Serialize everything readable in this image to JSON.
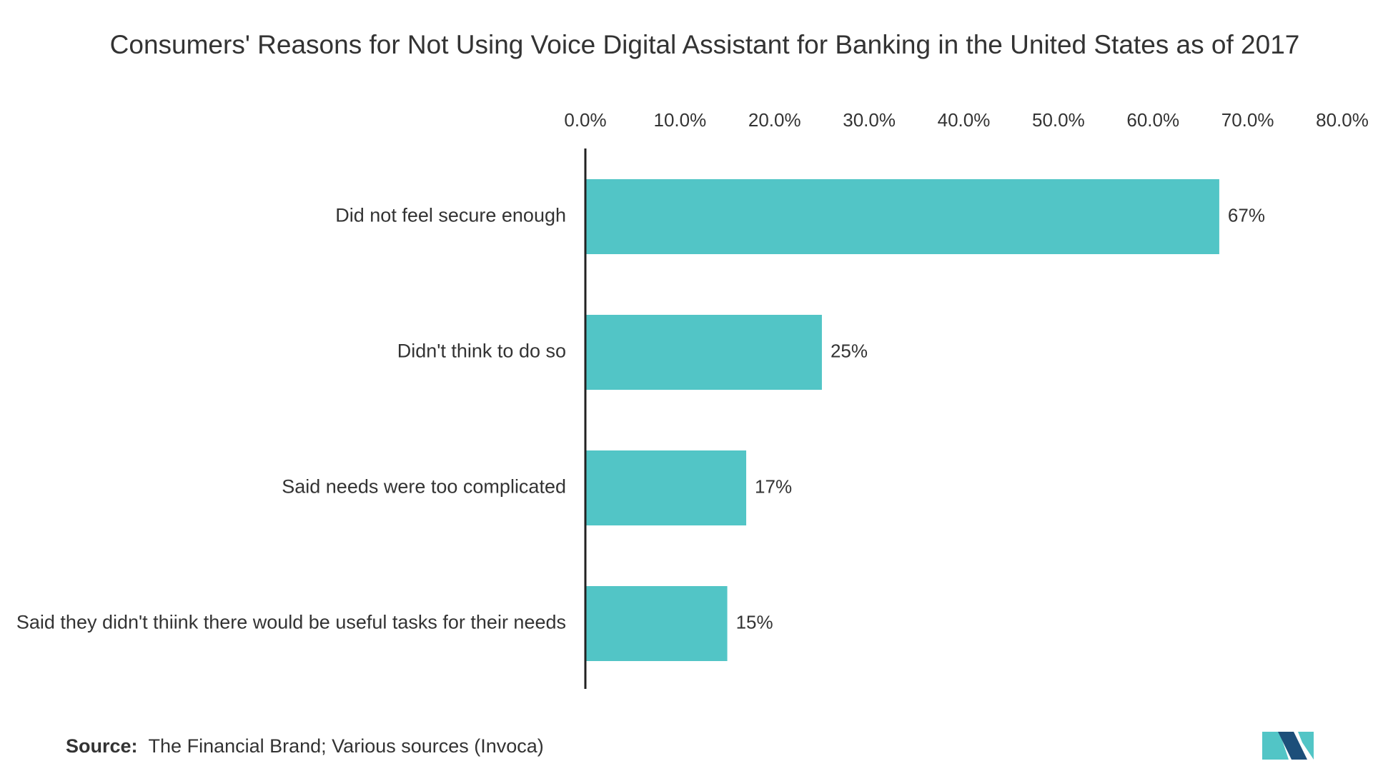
{
  "chart_data": {
    "type": "bar",
    "orientation": "horizontal",
    "title": "Consumers' Reasons for Not Using Voice Digital Assistant for Banking in the United States as of 2017",
    "categories": [
      "Did not feel secure enough",
      "Didn't think to do so",
      "Said needs were too complicated",
      "Said they didn't thiink there would be useful tasks for their needs"
    ],
    "values": [
      67,
      25,
      17,
      15
    ],
    "value_labels": [
      "67%",
      "25%",
      "17%",
      "15%"
    ],
    "xlim": [
      0,
      80
    ],
    "xticks": [
      0,
      10,
      20,
      30,
      40,
      50,
      60,
      70,
      80
    ],
    "xtick_labels": [
      "0.0%",
      "10.0%",
      "20.0%",
      "30.0%",
      "40.0%",
      "50.0%",
      "60.0%",
      "70.0%",
      "80.0%"
    ],
    "axis_position": "top",
    "grid": false,
    "legend": "none",
    "bar_color": "#52c5c6",
    "source_label": "Source:",
    "source_text": "The Financial Brand; Various sources (Invoca)"
  },
  "logo": {
    "name": "mordor-logo-icon",
    "colors": [
      "#1d4f7a",
      "#52c5c6"
    ]
  }
}
